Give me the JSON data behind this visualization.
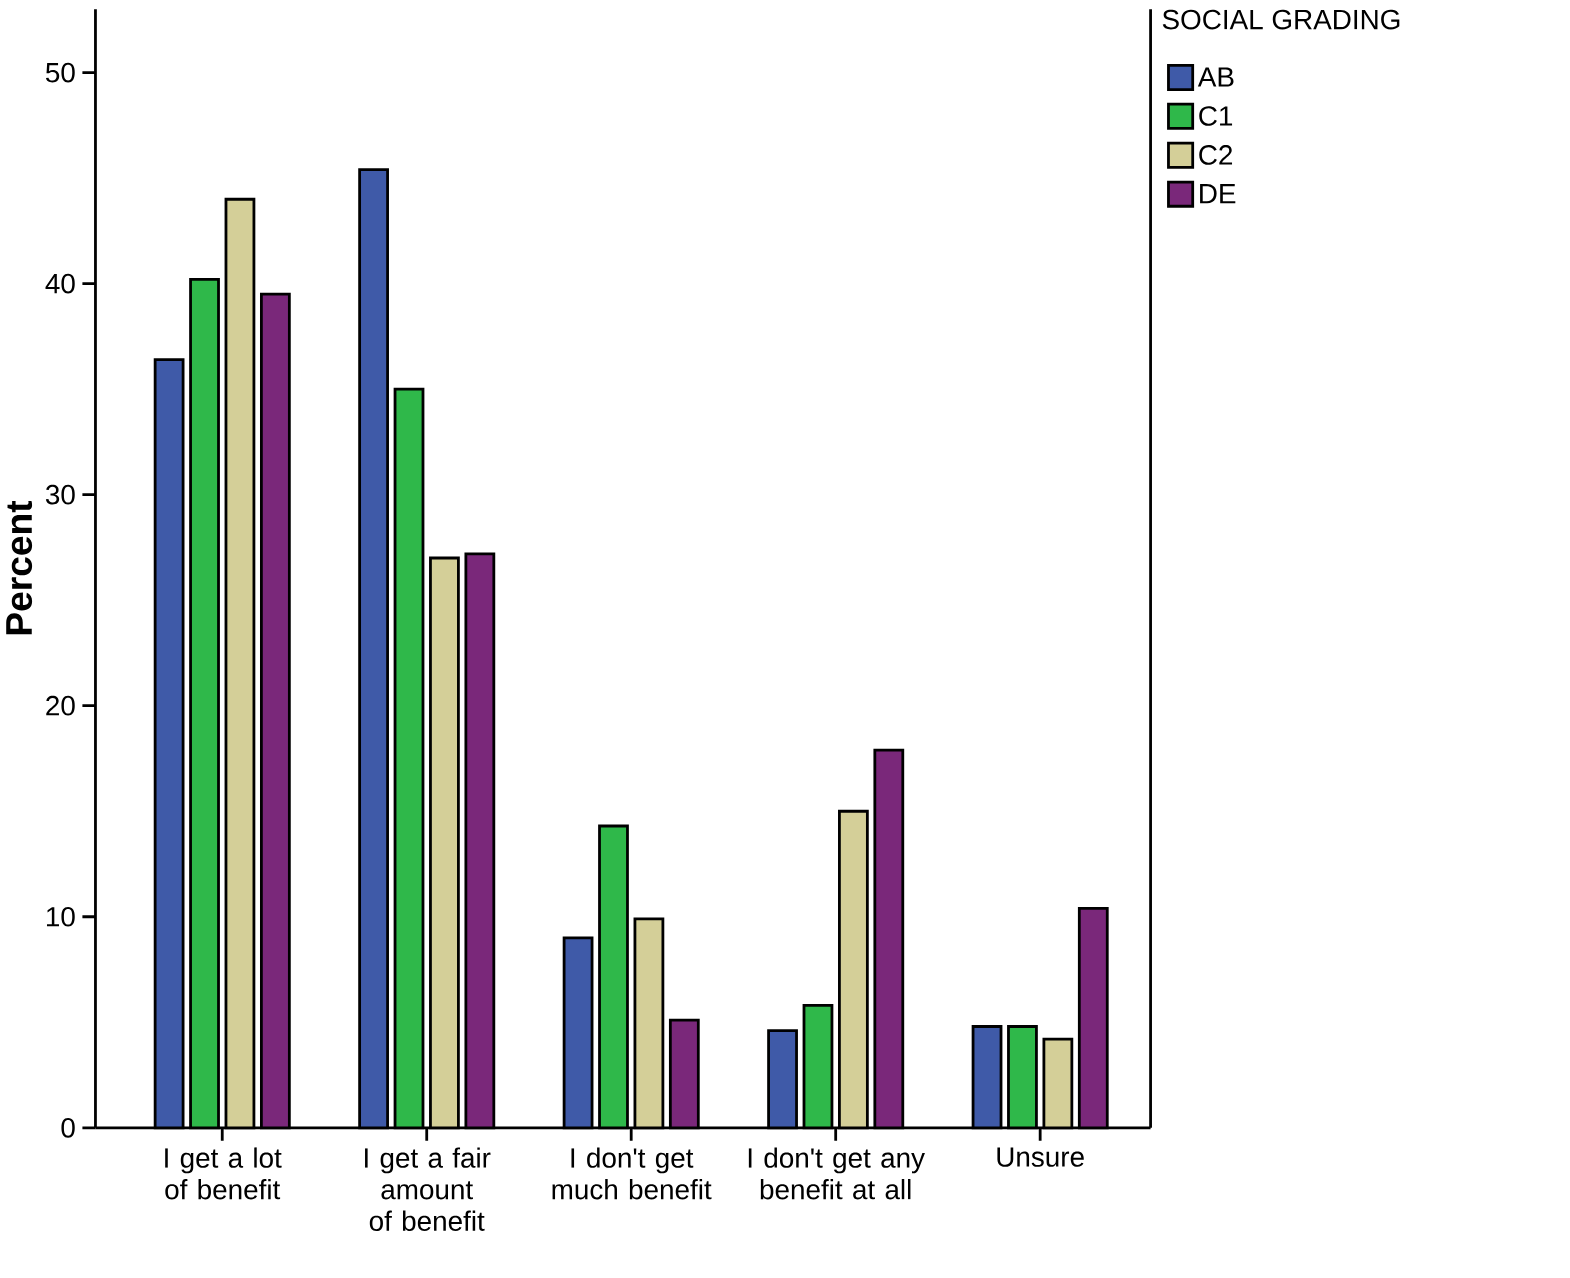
{
  "chart_data": {
    "type": "bar",
    "ylabel": "Percent",
    "legend_title": "SOCIAL GRADING",
    "legend": "top right",
    "categories": [
      "I get a lot of benefit",
      "I get a fair amount of benefit",
      "I don't get much benefit",
      "I don't get any benefit at all",
      "Unsure"
    ],
    "ylim": [
      0,
      53
    ],
    "yticks": [
      0,
      10,
      20,
      30,
      40,
      50
    ],
    "series": [
      {
        "name": "AB",
        "color": "#3f5aa8",
        "values": [
          36.4,
          45.4,
          9.0,
          4.6,
          4.8
        ]
      },
      {
        "name": "C1",
        "color": "#2fb84a",
        "values": [
          40.2,
          35.0,
          14.3,
          5.8,
          4.8
        ]
      },
      {
        "name": "C2",
        "color": "#d4cf98",
        "values": [
          44.0,
          27.0,
          9.9,
          15.0,
          4.2
        ]
      },
      {
        "name": "DE",
        "color": "#7a287a",
        "values": [
          39.5,
          27.2,
          5.1,
          17.9,
          10.4
        ]
      }
    ]
  }
}
